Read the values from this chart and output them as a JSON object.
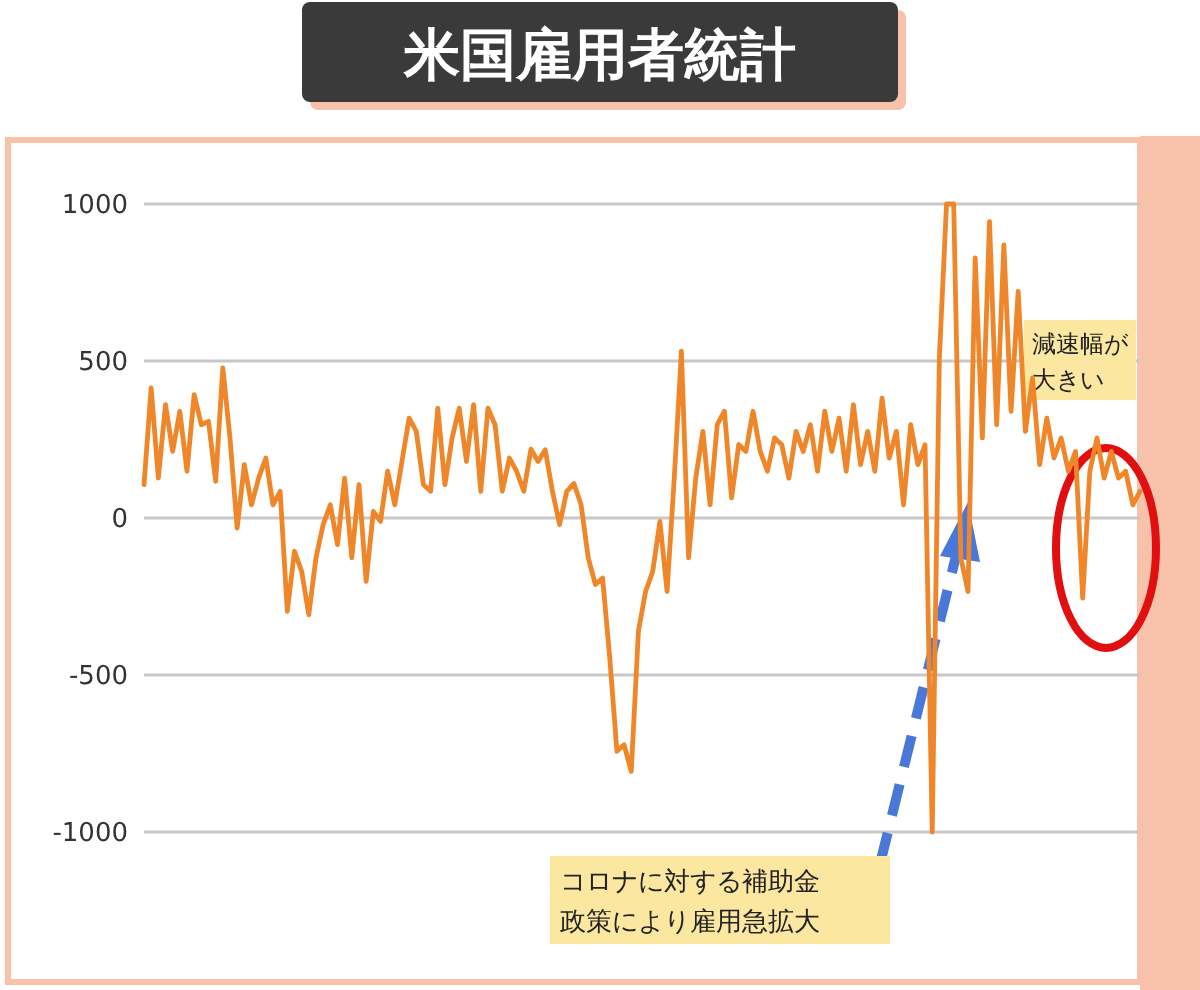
{
  "chart_data": {
    "type": "line",
    "title": "米国雇用者統計",
    "categories": [
      null,
      null,
      null,
      null,
      null,
      null,
      null,
      null,
      null,
      null,
      null,
      null,
      null,
      null,
      null,
      null,
      null,
      null,
      null,
      null,
      null,
      null,
      null,
      null,
      null,
      null,
      null,
      null,
      null,
      null,
      null,
      null,
      null,
      null,
      null,
      null,
      null,
      null,
      null,
      null,
      null,
      null,
      null,
      null,
      null,
      null,
      null,
      null,
      null,
      null,
      null,
      null,
      null,
      null,
      null,
      null,
      null,
      null,
      null,
      null,
      null,
      null,
      null,
      null,
      null,
      null,
      null,
      null,
      null,
      null,
      null,
      null,
      null,
      null,
      null,
      null,
      null,
      null,
      null,
      null,
      null,
      null,
      null,
      null,
      null,
      null,
      null,
      null,
      null,
      null,
      null,
      null,
      null,
      null,
      null,
      null,
      null,
      null,
      null,
      null,
      null,
      null,
      null,
      null,
      null,
      null,
      null,
      null,
      null,
      null,
      null,
      null,
      null,
      null,
      null,
      null,
      null,
      null,
      null,
      null,
      null,
      null,
      null,
      null,
      null,
      null,
      null,
      null,
      null,
      null,
      null,
      null,
      null,
      null,
      null,
      null,
      null,
      null,
      null,
      null
    ],
    "series": [
      {
        "color": "#f0862a",
        "values": [
          106,
          414,
          127,
          361,
          212,
          340,
          149,
          393,
          297,
          308,
          117,
          478,
          255,
          -32,
          170,
          42,
          127,
          191,
          42,
          85,
          -297,
          -106,
          -170,
          -308,
          -127,
          -21,
          42,
          -85,
          127,
          -127,
          106,
          -202,
          21,
          -11,
          149,
          42,
          180,
          318,
          276,
          106,
          85,
          350,
          106,
          255,
          350,
          180,
          361,
          85,
          350,
          297,
          85,
          191,
          149,
          85,
          219,
          180,
          217,
          85,
          -21,
          85,
          110,
          42,
          -127,
          -212,
          -191,
          -446,
          -743,
          -722,
          -807,
          -361,
          -234,
          -170,
          -11,
          -234,
          127,
          531,
          -127,
          127,
          276,
          42,
          297,
          340,
          64,
          234,
          212,
          340,
          212,
          149,
          255,
          233,
          127,
          276,
          212,
          297,
          149,
          340,
          212,
          318,
          149,
          361,
          170,
          276,
          149,
          382,
          191,
          276,
          42,
          297,
          170,
          233,
          -1000,
          510,
          1000,
          1000,
          -127,
          -234,
          828,
          255,
          944,
          297,
          870,
          340,
          722,
          276,
          446,
          170,
          318,
          191,
          255,
          149,
          212,
          -255,
          149,
          255,
          127,
          212,
          127,
          149,
          42,
          85
        ]
      }
    ],
    "ylim": [
      -1000,
      1000
    ],
    "yticks": [
      -1000,
      -500,
      0,
      500,
      1000
    ],
    "grid": "y",
    "tick_labels": "y",
    "annotations": [
      "コロナに対する補助金政策により雇用急拡大",
      "減速幅が大きい"
    ]
  }
}
